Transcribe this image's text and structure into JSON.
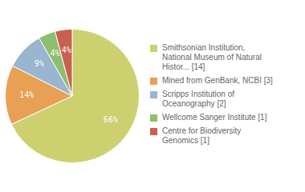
{
  "chart_data": {
    "type": "pie",
    "categories": [
      "Smithsonian Institution,\nNational Museum of Natural\nHistor... [14]",
      "Mined from GenBank, NCBI [3]",
      "Scripps Institution of\nOceanography [2]",
      "Wellcome Sanger Institute [1]",
      "Centre for Biodiversity\nGenomics [1]"
    ],
    "values": [
      66,
      14,
      9,
      4,
      4
    ],
    "value_labels": [
      "66%",
      "14%",
      "9%",
      "4%",
      "4%"
    ],
    "colors": [
      "#cdd06e",
      "#e8a055",
      "#9ab5d0",
      "#8dbf6e",
      "#c96050"
    ],
    "data_labels": true,
    "legend": "right"
  }
}
